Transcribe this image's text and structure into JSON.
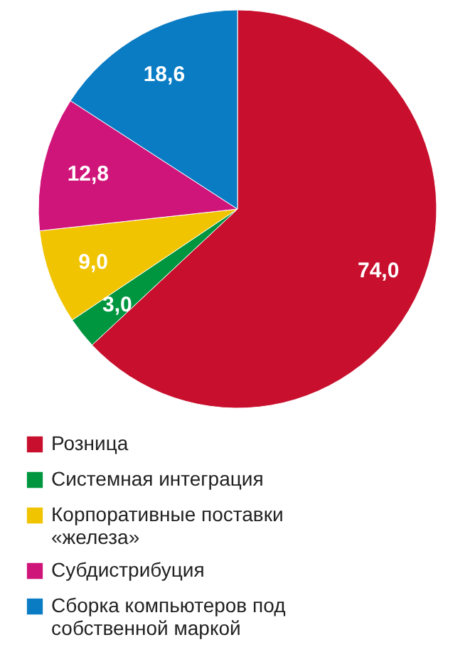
{
  "chart_data": {
    "type": "pie",
    "categories": [
      "Розница",
      "Системная интеграция",
      "Корпоративные поставки «железа»",
      "Субдистрибуция",
      "Сборка компьютеров под собственной маркой"
    ],
    "values": [
      74.0,
      3.0,
      9.0,
      12.8,
      18.6
    ],
    "value_labels": [
      "74,0",
      "3,0",
      "9,0",
      "12,8",
      "18,6"
    ],
    "colors": [
      "#c8102e",
      "#00963f",
      "#f0c400",
      "#d0157a",
      "#0a7cc4"
    ],
    "legend": "bottom"
  }
}
